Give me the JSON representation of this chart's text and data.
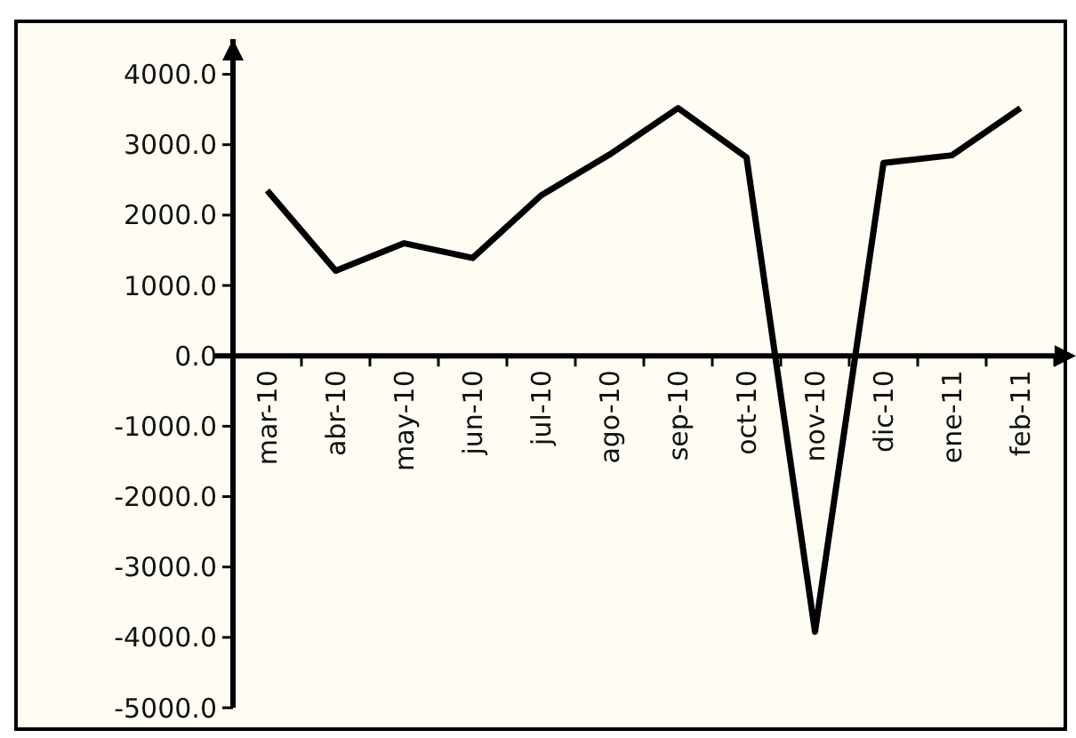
{
  "chart_data": {
    "type": "line",
    "categories": [
      "mar-10",
      "abr-10",
      "may-10",
      "jun-10",
      "jul-10",
      "ago-10",
      "sep-10",
      "oct-10",
      "nov-10",
      "dic-10",
      "ene-11",
      "feb-11"
    ],
    "series": [
      {
        "color": "#000000",
        "values": [
          2350,
          1210,
          1600,
          1390,
          2280,
          2860,
          3520,
          2820,
          -3920,
          2740,
          2850,
          3520
        ]
      }
    ],
    "ylim": [
      -5000,
      4500
    ],
    "yticks": [
      {
        "value": -5000,
        "label": "-5000.0"
      },
      {
        "value": -4000,
        "label": "-4000.0"
      },
      {
        "value": -3000,
        "label": "-3000.0"
      },
      {
        "value": -2000,
        "label": "-2000.0"
      },
      {
        "value": -1000,
        "label": "-1000.0"
      },
      {
        "value": 0,
        "label": "0.0"
      },
      {
        "value": 1000,
        "label": "1000.0"
      },
      {
        "value": 2000,
        "label": "2000.0"
      },
      {
        "value": 3000,
        "label": "3000.0"
      },
      {
        "value": 4000,
        "label": "4000.0"
      }
    ],
    "grid": false,
    "marker": "none",
    "line_style": "solid"
  }
}
